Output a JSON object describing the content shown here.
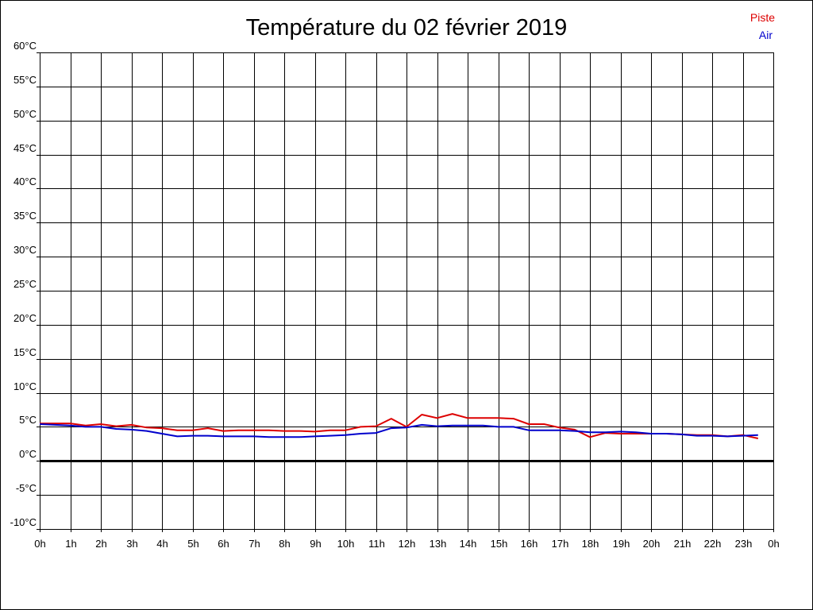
{
  "chart_data": {
    "type": "line",
    "title": "Température du 02 février 2019",
    "xlabel": "",
    "ylabel": "",
    "x_tick_labels": [
      "0h",
      "1h",
      "2h",
      "3h",
      "4h",
      "5h",
      "6h",
      "7h",
      "8h",
      "9h",
      "10h",
      "11h",
      "12h",
      "13h",
      "14h",
      "15h",
      "16h",
      "17h",
      "18h",
      "19h",
      "20h",
      "21h",
      "22h",
      "23h",
      "0h"
    ],
    "y_tick_labels": [
      "60°C",
      "55°C",
      "50°C",
      "45°C",
      "40°C",
      "35°C",
      "30°C",
      "25°C",
      "20°C",
      "15°C",
      "10°C",
      "5°C",
      "0°C",
      "-5°C",
      "-10°C"
    ],
    "xlim": [
      0,
      24
    ],
    "ylim": [
      -10,
      60
    ],
    "grid": true,
    "legend_position": "top-right",
    "series": [
      {
        "name": "Piste",
        "color": "#dd0000",
        "x": [
          0,
          1,
          1.5,
          2,
          2.5,
          3,
          3.5,
          4,
          4.5,
          5,
          5.5,
          6,
          6.5,
          7,
          7.5,
          8,
          8.5,
          9,
          9.5,
          10,
          10.5,
          11,
          11.5,
          12,
          12.5,
          13,
          13.5,
          14,
          14.5,
          15,
          15.5,
          16,
          16.5,
          17,
          17.5,
          18,
          18.5,
          19,
          19.5,
          20,
          20.5,
          21,
          21.5,
          22,
          22.5,
          23,
          23.5
        ],
        "y": [
          5.5,
          5.5,
          5.2,
          5.4,
          5.1,
          5.3,
          4.9,
          4.8,
          4.5,
          4.5,
          4.8,
          4.4,
          4.5,
          4.5,
          4.5,
          4.4,
          4.4,
          4.3,
          4.5,
          4.5,
          5.0,
          5.1,
          6.2,
          5.0,
          6.8,
          6.3,
          6.9,
          6.3,
          6.3,
          6.3,
          6.2,
          5.4,
          5.4,
          4.9,
          4.6,
          3.5,
          4.1,
          4.0,
          4.0,
          4.0,
          4.0,
          3.9,
          3.8,
          3.8,
          3.6,
          3.8,
          3.3
        ]
      },
      {
        "name": "Air",
        "color": "#0000cc",
        "x": [
          0,
          1,
          1.5,
          2,
          2.5,
          3,
          3.5,
          4,
          4.5,
          5,
          5.5,
          6,
          6.5,
          7,
          7.5,
          8,
          8.5,
          9,
          9.5,
          10,
          10.5,
          11,
          11.5,
          12,
          12.5,
          13,
          13.5,
          14,
          14.5,
          15,
          15.5,
          16,
          16.5,
          17,
          17.5,
          18,
          18.5,
          19,
          19.5,
          20,
          20.5,
          21,
          21.5,
          22,
          22.5,
          23,
          23.5
        ],
        "y": [
          5.4,
          5.2,
          5.0,
          5.0,
          4.7,
          4.6,
          4.4,
          4.0,
          3.6,
          3.7,
          3.7,
          3.6,
          3.6,
          3.6,
          3.5,
          3.5,
          3.5,
          3.6,
          3.7,
          3.8,
          4.0,
          4.1,
          4.8,
          4.9,
          5.3,
          5.1,
          5.2,
          5.2,
          5.2,
          5.0,
          5.0,
          4.5,
          4.5,
          4.5,
          4.4,
          4.2,
          4.2,
          4.3,
          4.2,
          4.0,
          4.0,
          3.9,
          3.7,
          3.7,
          3.6,
          3.7,
          3.8
        ]
      }
    ]
  }
}
